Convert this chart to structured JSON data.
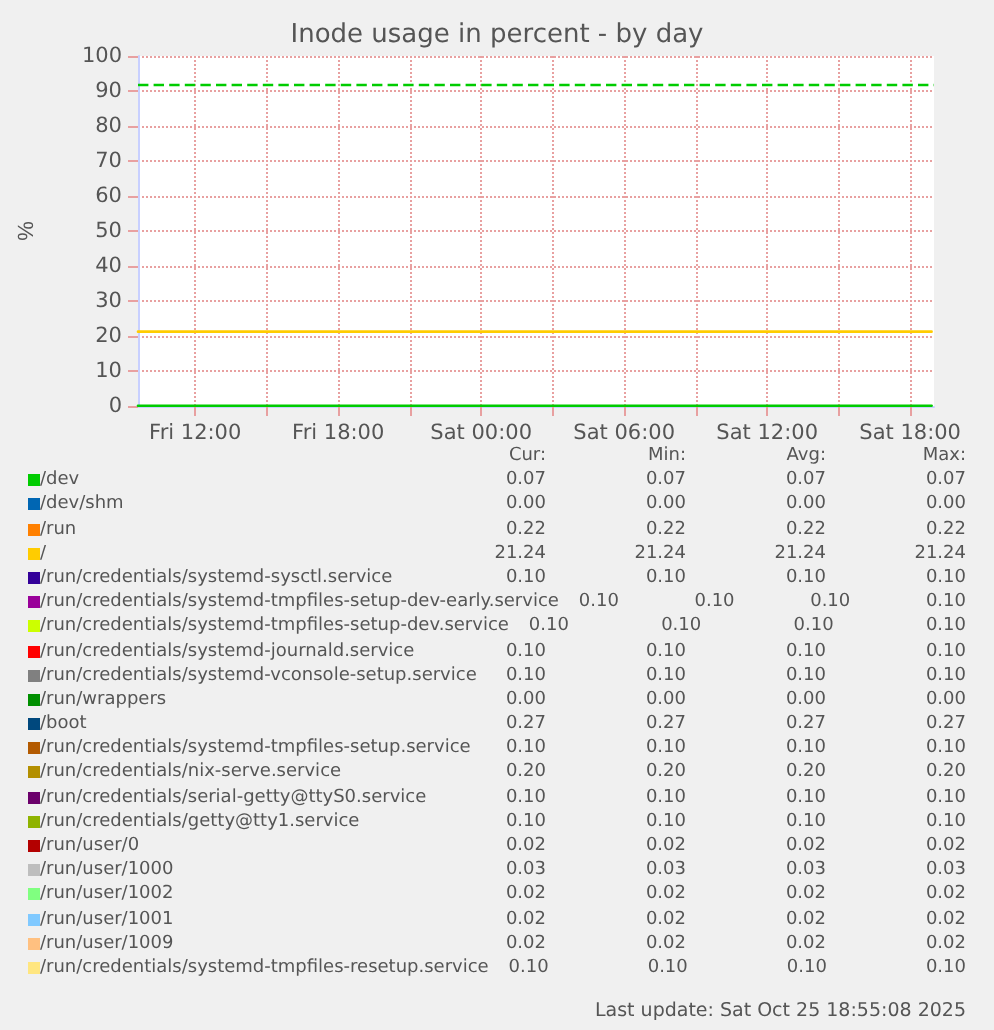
{
  "chart_data": {
    "type": "line",
    "title": "Inode usage in percent - by day",
    "ylabel": "%",
    "xlim": [
      "2025-10-24T09:36",
      "2025-10-25T19:00"
    ],
    "xticks": [
      {
        "value": "2025-10-24T12:00",
        "label": "Fri 12:00"
      },
      {
        "value": "2025-10-24T15:00",
        "label": null
      },
      {
        "value": "2025-10-24T18:00",
        "label": "Fri 18:00"
      },
      {
        "value": "2025-10-24T21:00",
        "label": null
      },
      {
        "value": "2025-10-25T00:00",
        "label": "Sat 00:00"
      },
      {
        "value": "2025-10-25T03:00",
        "label": null
      },
      {
        "value": "2025-10-25T06:00",
        "label": "Sat 06:00"
      },
      {
        "value": "2025-10-25T09:00",
        "label": null
      },
      {
        "value": "2025-10-25T12:00",
        "label": "Sat 12:00"
      },
      {
        "value": "2025-10-25T15:00",
        "label": null
      },
      {
        "value": "2025-10-25T18:00",
        "label": "Sat 18:00"
      }
    ],
    "ylim": [
      0,
      100
    ],
    "yticks": [
      0,
      10,
      20,
      30,
      40,
      50,
      60,
      70,
      80,
      90,
      100
    ],
    "x": [
      "2025-10-24T09:36",
      "2025-10-25T18:54"
    ],
    "series": [
      {
        "name": "/dev",
        "color": "#00cc00",
        "values": [
          0.07,
          0.07
        ]
      },
      {
        "name": "/dev/shm",
        "color": "#0066b3",
        "values": [
          null,
          null
        ]
      },
      {
        "name": "/run",
        "color": "#ff8000",
        "values": [
          null,
          null
        ]
      },
      {
        "name": "/",
        "color": "#ffcc00",
        "values": [
          21.24,
          21.24
        ]
      },
      {
        "name": "/run/credentials/systemd-sysctl.service",
        "color": "#330099",
        "values": [
          null,
          null
        ]
      },
      {
        "name": "/run/credentials/systemd-tmpfiles-setup-dev-early.service",
        "color": "#990099",
        "values": [
          null,
          null
        ]
      },
      {
        "name": "/run/credentials/systemd-tmpfiles-setup-dev.service",
        "color": "#ccff00",
        "values": [
          null,
          null
        ]
      },
      {
        "name": "/run/credentials/systemd-journald.service",
        "color": "#ff0000",
        "values": [
          null,
          null
        ]
      },
      {
        "name": "/run/credentials/systemd-vconsole-setup.service",
        "color": "#808080",
        "values": [
          null,
          null
        ]
      },
      {
        "name": "/run/wrappers",
        "color": "#008f00",
        "values": [
          null,
          null
        ]
      },
      {
        "name": "/boot",
        "color": "#00487d",
        "values": [
          null,
          null
        ]
      },
      {
        "name": "/run/credentials/systemd-tmpfiles-setup.service",
        "color": "#b35a00",
        "values": [
          null,
          null
        ]
      },
      {
        "name": "/run/credentials/nix-serve.service",
        "color": "#b38f00",
        "values": [
          null,
          null
        ]
      },
      {
        "name": "/run/credentials/serial-getty@ttyS0.service",
        "color": "#6b006b",
        "values": [
          null,
          null
        ]
      },
      {
        "name": "/run/credentials/getty@tty1.service",
        "color": "#8fb300",
        "values": [
          null,
          null
        ]
      },
      {
        "name": "/run/user/0",
        "color": "#b30000",
        "values": [
          null,
          null
        ]
      },
      {
        "name": "/run/user/1000",
        "color": "#bebebe",
        "values": [
          null,
          null
        ]
      },
      {
        "name": "/run/user/1002",
        "color": "#80ff80",
        "values": [
          null,
          null
        ]
      },
      {
        "name": "/run/user/1001",
        "color": "#80c9ff",
        "values": [
          null,
          null
        ]
      },
      {
        "name": "/run/user/1009",
        "color": "#ffc080",
        "values": [
          null,
          null
        ]
      },
      {
        "name": "/run/credentials/systemd-tmpfiles-resetup.service",
        "color": "#ffe680",
        "values": [
          null,
          null
        ]
      }
    ],
    "ref_lines": [
      {
        "axis": "y",
        "value": 92,
        "color": "#00cc00",
        "line_style": "dashed"
      }
    ],
    "annotations": [
      "Cur:",
      "Min:",
      "Avg:",
      "Max:",
      "0.07",
      "0.07",
      "0.07",
      "0.07",
      "0.00",
      "0.00",
      "0.00",
      "0.00",
      "0.22",
      "0.22",
      "0.22",
      "0.22",
      "21.24",
      "21.24",
      "21.24",
      "21.24",
      "0.10",
      "0.10",
      "0.10",
      "0.10",
      "0.10",
      "0.10",
      "0.10",
      "0.10",
      "0.10",
      "0.10",
      "0.10",
      "0.10",
      "0.10",
      "0.10",
      "0.10",
      "0.10",
      "0.10",
      "0.10",
      "0.10",
      "0.10",
      "0.00",
      "0.00",
      "0.00",
      "0.00",
      "0.27",
      "0.27",
      "0.27",
      "0.27",
      "0.10",
      "0.10",
      "0.10",
      "0.10",
      "0.20",
      "0.20",
      "0.20",
      "0.20",
      "0.10",
      "0.10",
      "0.10",
      "0.10",
      "0.10",
      "0.10",
      "0.10",
      "0.10",
      "0.02",
      "0.02",
      "0.02",
      "0.02",
      "0.03",
      "0.03",
      "0.03",
      "0.03",
      "0.02",
      "0.02",
      "0.02",
      "0.02",
      "0.02",
      "0.02",
      "0.02",
      "0.02",
      "0.02",
      "0.02",
      "0.02",
      "0.02",
      "0.10",
      "0.10",
      "0.10",
      "0.10",
      "Last update: Sat Oct 25 18:55:08 2025"
    ],
    "grid": true,
    "legend": "bottom",
    "marker": "none",
    "line_style": "solid"
  }
}
